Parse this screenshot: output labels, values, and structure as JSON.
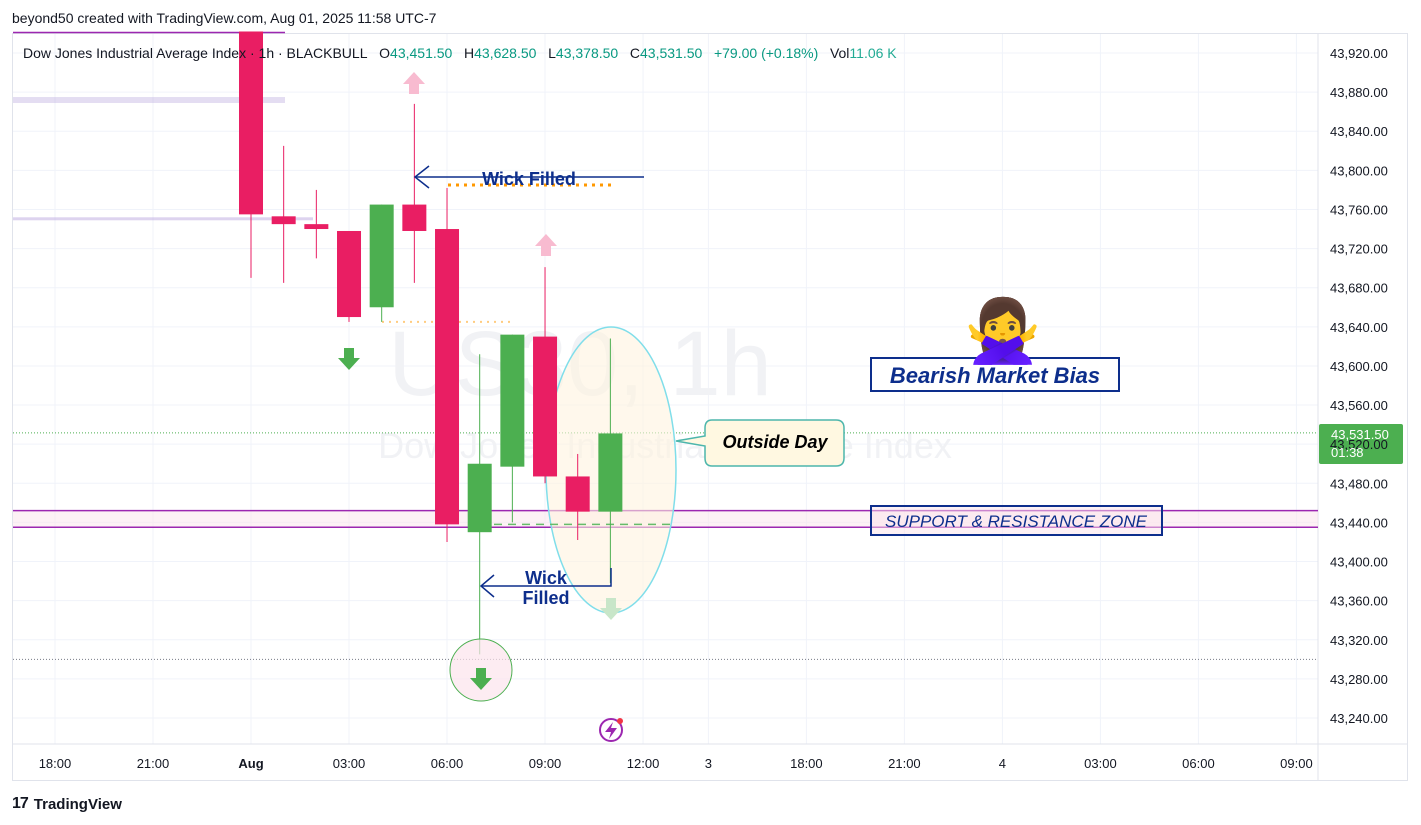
{
  "header": {
    "publisher": "beyond50 created with TradingView.com, Aug 01, 2025 11:58 UTC-7"
  },
  "legend": {
    "symbol": "Dow Jones Industrial Average Index · 1h · BLACKBULL",
    "open_label": "O",
    "open": "43,451.50",
    "high_label": "H",
    "high": "43,628.50",
    "low_label": "L",
    "low": "43,378.50",
    "close_label": "C",
    "close": "43,531.50",
    "change": "+79.00 (+0.18%)",
    "vol_label": "Vol",
    "vol": "11.06 K"
  },
  "watermark": {
    "line1": "US30, 1h",
    "line2": "Dow Jones Industrial Average Index"
  },
  "price_tag": {
    "price": "43,531.50",
    "countdown": "01:38",
    "color": "#4caf50"
  },
  "annotations": {
    "wick_filled_top": "Wick Filled",
    "wick_filled_bottom_1": "Wick",
    "wick_filled_bottom_2": "Filled",
    "outside_day": "Outside Day",
    "bearish_bias": "Bearish Market Bias",
    "sr_zone": "SUPPORT & RESISTANCE ZONE",
    "emoji": "🙅‍♀️"
  },
  "brand": {
    "logo": "17",
    "name": "TradingView"
  },
  "colors": {
    "up": "#4caf50",
    "down": "#e91e63",
    "zone": "#9c27b0",
    "label": "#0d2e8c"
  },
  "chart_data": {
    "type": "candlestick",
    "title": "",
    "y_ticks": [
      43240,
      43280,
      43320,
      43360,
      43400,
      43440,
      43480,
      43520,
      43560,
      43600,
      43640,
      43680,
      43720,
      43760,
      43800,
      43840,
      43880,
      43920
    ],
    "y_tick_labels": [
      "43,240.00",
      "43,280.00",
      "43,320.00",
      "43,360.00",
      "43,400.00",
      "43,440.00",
      "43,480.00",
      "43,520.00",
      "43,560.00",
      "43,600.00",
      "43,640.00",
      "43,680.00",
      "43,720.00",
      "43,760.00",
      "43,800.00",
      "43,840.00",
      "43,880.00",
      "43,920.00"
    ],
    "ylim": [
      43205,
      43942
    ],
    "x_ticks": [
      {
        "i": -2,
        "label": "18:00"
      },
      {
        "i": 1,
        "label": "21:00"
      },
      {
        "i": 4,
        "label": "Aug"
      },
      {
        "i": 7,
        "label": "03:00"
      },
      {
        "i": 10,
        "label": "06:00"
      },
      {
        "i": 13,
        "label": "09:00"
      },
      {
        "i": 16,
        "label": "12:00"
      },
      {
        "i": 18,
        "label": "3"
      },
      {
        "i": 21,
        "label": "18:00"
      },
      {
        "i": 24,
        "label": "21:00"
      },
      {
        "i": 27,
        "label": "4"
      },
      {
        "i": 30,
        "label": "03:00"
      },
      {
        "i": 33,
        "label": "06:00"
      },
      {
        "i": 36,
        "label": "09:00"
      }
    ],
    "candles": [
      {
        "i": 4,
        "o": 43942,
        "h": 43942,
        "l": 43690,
        "c": 43755
      },
      {
        "i": 5,
        "o": 43753,
        "h": 43825,
        "l": 43685,
        "c": 43745
      },
      {
        "i": 6,
        "o": 43745,
        "h": 43780,
        "l": 43710,
        "c": 43740
      },
      {
        "i": 7,
        "o": 43738,
        "h": 43738,
        "l": 43645,
        "c": 43650
      },
      {
        "i": 8,
        "o": 43660,
        "h": 43765,
        "l": 43645,
        "c": 43765
      },
      {
        "i": 9,
        "o": 43765,
        "h": 43868,
        "l": 43685,
        "c": 43738
      },
      {
        "i": 10,
        "o": 43740,
        "h": 43782,
        "l": 43420,
        "c": 43438
      },
      {
        "i": 11,
        "o": 43430,
        "h": 43612,
        "l": 43305,
        "c": 43500
      },
      {
        "i": 12,
        "o": 43497,
        "h": 43632,
        "l": 43440,
        "c": 43632
      },
      {
        "i": 13,
        "o": 43630,
        "h": 43701,
        "l": 43480,
        "c": 43487
      },
      {
        "i": 14,
        "o": 43487,
        "h": 43510,
        "l": 43422,
        "c": 43451
      },
      {
        "i": 15,
        "o": 43451,
        "h": 43628,
        "l": 43378,
        "c": 43531
      }
    ],
    "support_resistance_zone": [
      43435,
      43452
    ],
    "current_price": 43531.5,
    "previous_close_line": 43300
  }
}
